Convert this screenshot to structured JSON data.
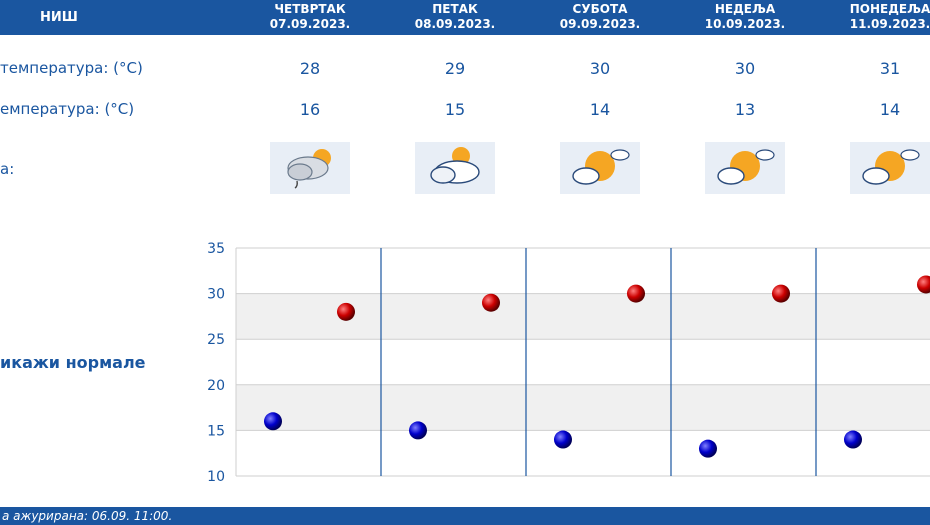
{
  "header": {
    "city": "НИШ",
    "days": [
      {
        "name": "ЧЕТВРТАК",
        "date": "07.09.2023."
      },
      {
        "name": "ПЕТАК",
        "date": "08.09.2023."
      },
      {
        "name": "СУБОТА",
        "date": "09.09.2023."
      },
      {
        "name": "НЕДЕЉА",
        "date": "10.09.2023."
      },
      {
        "name": "ПОНЕДЕЉА",
        "date": "11.09.2023."
      }
    ]
  },
  "rows": {
    "max_label": "температура: (°C)",
    "min_label": "емпература: (°C)",
    "icon_label": "а:",
    "max": [
      "28",
      "29",
      "30",
      "30",
      "31"
    ],
    "min": [
      "16",
      "15",
      "14",
      "13",
      "14"
    ],
    "icons": [
      "sun-cloud-rain-icon",
      "sun-cloud-icon",
      "sun-small-cloud-icon",
      "sun-small-cloud-icon",
      "sun-small-cloud-icon"
    ]
  },
  "toggle_label": "икажи нормале",
  "footer_text": "а ажурирана:  06.09.  11:00.",
  "colors": {
    "brand": "#1a56a0",
    "max_dot": "#cc0000",
    "min_dot": "#0000cc"
  },
  "chart_data": {
    "type": "scatter",
    "ylim": [
      10,
      35
    ],
    "yticks": [
      "35",
      "30",
      "25",
      "20",
      "15",
      "10"
    ],
    "series": [
      {
        "values": [
          28,
          29,
          30,
          30,
          31
        ]
      },
      {
        "values": [
          16,
          15,
          14,
          13,
          14
        ]
      }
    ]
  }
}
